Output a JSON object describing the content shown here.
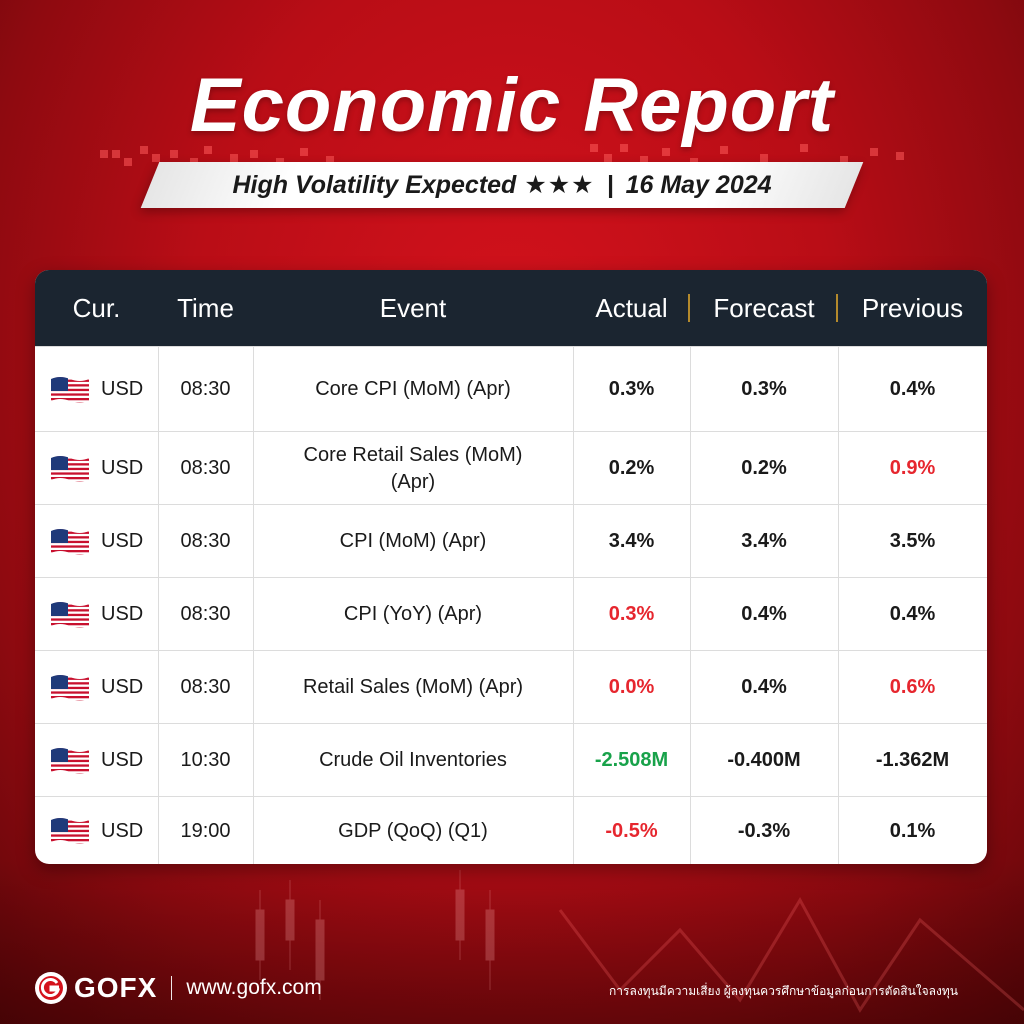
{
  "header": {
    "title": "Economic Report",
    "subtitle": "High Volatility Expected",
    "stars": "★★★",
    "separator": "|",
    "date": "16 May 2024"
  },
  "table": {
    "headers": {
      "cur": "Cur.",
      "time": "Time",
      "event": "Event",
      "actual": "Actual",
      "forecast": "Forecast",
      "previous": "Previous"
    },
    "rows": [
      {
        "flag": "us-flag-icon",
        "cur": "USD",
        "time": "08:30",
        "event": "Core CPI (MoM) (Apr)",
        "actual": "0.3%",
        "forecast": "0.3%",
        "previous": "0.4%",
        "actual_color": "#1a1a1a",
        "previous_color": "#1a1a1a"
      },
      {
        "flag": "us-flag-icon",
        "cur": "USD",
        "time": "08:30",
        "event": "Core Retail Sales (MoM) (Apr)",
        "actual": "0.2%",
        "forecast": "0.2%",
        "previous": "0.9%",
        "actual_color": "#1a1a1a",
        "previous_color": "#e6262e"
      },
      {
        "flag": "us-flag-icon",
        "cur": "USD",
        "time": "08:30",
        "event": "CPI (MoM) (Apr)",
        "actual": "3.4%",
        "forecast": "3.4%",
        "previous": "3.5%",
        "actual_color": "#1a1a1a",
        "previous_color": "#1a1a1a"
      },
      {
        "flag": "us-flag-icon",
        "cur": "USD",
        "time": "08:30",
        "event": "CPI (YoY) (Apr)",
        "actual": "0.3%",
        "forecast": "0.4%",
        "previous": "0.4%",
        "actual_color": "#e6262e",
        "previous_color": "#1a1a1a"
      },
      {
        "flag": "us-flag-icon",
        "cur": "USD",
        "time": "08:30",
        "event": "Retail Sales (MoM) (Apr)",
        "actual": "0.0%",
        "forecast": "0.4%",
        "previous": "0.6%",
        "actual_color": "#e6262e",
        "previous_color": "#e6262e"
      },
      {
        "flag": "us-flag-icon",
        "cur": "USD",
        "time": "10:30",
        "event": "Crude Oil Inventories",
        "actual": "-2.508M",
        "forecast": "-0.400M",
        "previous": "-1.362M",
        "actual_color": "#18a24a",
        "previous_color": "#1a1a1a"
      },
      {
        "flag": "us-flag-icon",
        "cur": "USD",
        "time": "19:00",
        "event": "GDP (QoQ) (Q1)",
        "actual": "-0.5%",
        "forecast": "-0.3%",
        "previous": "0.1%",
        "actual_color": "#e6262e",
        "previous_color": "#1a1a1a"
      }
    ]
  },
  "footer": {
    "logo": "GOFX",
    "separator": "|",
    "url": "www.gofx.com",
    "disclaimer": "การลงทุนมีความเสี่ยง ผู้ลงทุนควรศึกษาข้อมูลก่อนการตัดสินใจลงทุน"
  },
  "colors": {
    "brand_red": "#d4121c",
    "header_dark": "#1b2530",
    "accent_gold": "#b48a2c",
    "positive_green": "#18a24a",
    "negative_red": "#e6262e"
  }
}
